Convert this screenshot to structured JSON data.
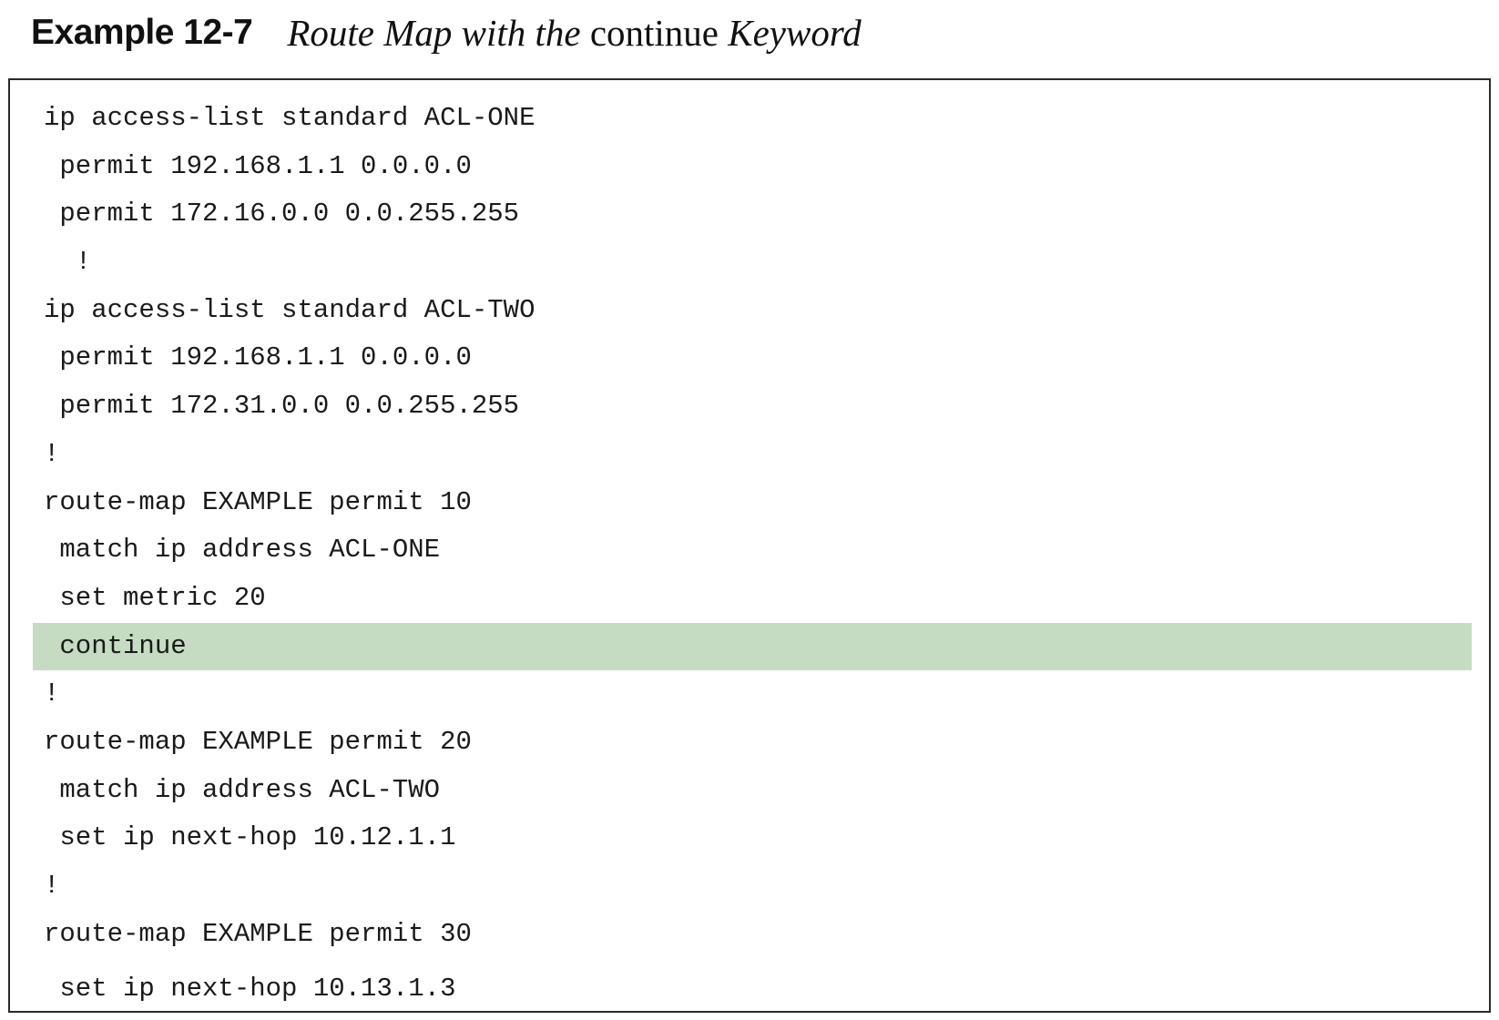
{
  "caption": {
    "label": "Example 12-7",
    "title_part1": "Route Map with the ",
    "title_keyword": "continue",
    "title_part2": " Keyword"
  },
  "code": {
    "lines": [
      "ip access-list standard ACL-ONE",
      " permit 192.168.1.1 0.0.0.0",
      " permit 172.16.0.0 0.0.255.255",
      "  !",
      "ip access-list standard ACL-TWO",
      " permit 192.168.1.1 0.0.0.0",
      " permit 172.31.0.0 0.0.255.255",
      "!",
      "route-map EXAMPLE permit 10",
      " match ip address ACL-ONE",
      " set metric 20",
      " continue",
      "!",
      "route-map EXAMPLE permit 20",
      " match ip address ACL-TWO",
      " set ip next-hop 10.12.1.1",
      "!",
      "route-map EXAMPLE permit 30",
      " set ip next-hop 10.13.1.3"
    ],
    "highlight_color": "#c5dcc2"
  }
}
